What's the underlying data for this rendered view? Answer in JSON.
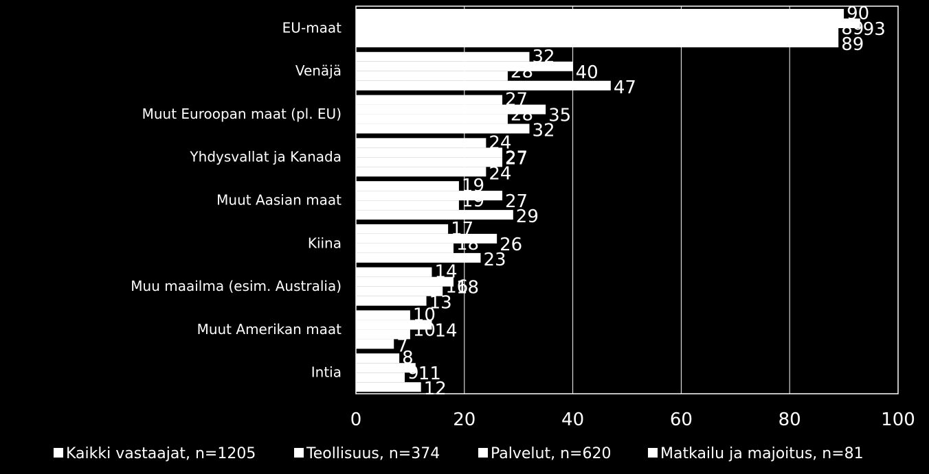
{
  "chart_data": {
    "type": "bar",
    "orientation": "horizontal",
    "categories": [
      "EU-maat",
      "Venäjä",
      "Muut Euroopan maat (pl. EU)",
      "Yhdysvallat ja Kanada",
      "Muut Aasian maat",
      "Kiina",
      "Muu maailma (esim. Australia)",
      "Muut Amerikan maat",
      "Intia"
    ],
    "series": [
      {
        "name": "Kaikki vastaajat, n=1205",
        "values": [
          90,
          32,
          27,
          24,
          19,
          17,
          14,
          10,
          8
        ]
      },
      {
        "name": "Teollisuus, n=374",
        "values": [
          93,
          40,
          35,
          27,
          27,
          26,
          18,
          14,
          11
        ]
      },
      {
        "name": "Palvelut, n=620",
        "values": [
          89,
          28,
          28,
          27,
          19,
          18,
          16,
          10,
          9
        ]
      },
      {
        "name": "Matkailu ja majoitus, n=81",
        "values": [
          89,
          47,
          32,
          24,
          29,
          23,
          13,
          7,
          12
        ]
      }
    ],
    "xlim": [
      0,
      100
    ],
    "xticks": [
      "0",
      "20",
      "40",
      "60",
      "80",
      "100"
    ],
    "grid": true,
    "legend": "bottom",
    "colors": {
      "background": "#000000",
      "bars": "#ffffff",
      "text": "#ffffff",
      "grid": "#ffffff"
    }
  }
}
